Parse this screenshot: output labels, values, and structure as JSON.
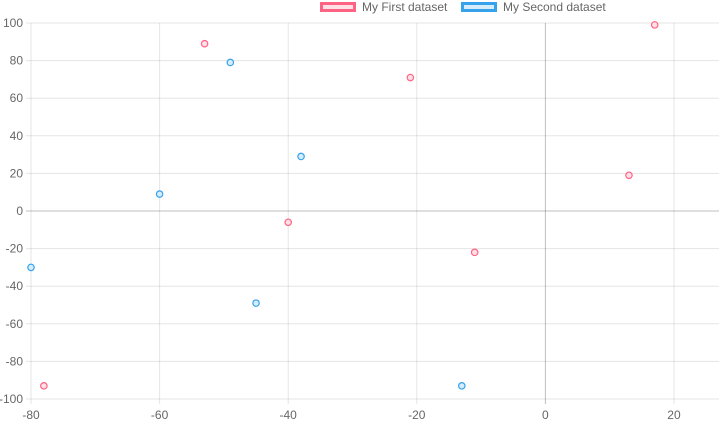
{
  "chart_data": {
    "type": "scatter",
    "title": "",
    "xlabel": "",
    "ylabel": "",
    "xlim": [
      -80,
      27
    ],
    "ylim": [
      -100,
      100
    ],
    "x_ticks": [
      -80,
      -60,
      -40,
      -20,
      0,
      20
    ],
    "y_ticks": [
      -100,
      -80,
      -60,
      -40,
      -20,
      0,
      20,
      40,
      60,
      80,
      100
    ],
    "x_tick_labels": [
      "-80",
      "-60",
      "-40",
      "-20",
      "0",
      "20"
    ],
    "y_tick_labels": [
      "-100",
      "-80",
      "-60",
      "-40",
      "-20",
      "0",
      "20",
      "40",
      "60",
      "80",
      "100"
    ],
    "grid": true,
    "legend_position": "top",
    "series": [
      {
        "name": "My First dataset",
        "border_color": "#ff6384",
        "fill_color": "#ffe0e6",
        "points": [
          {
            "x": -78,
            "y": -93
          },
          {
            "x": -53,
            "y": 89
          },
          {
            "x": -40,
            "y": -6
          },
          {
            "x": -21,
            "y": 71
          },
          {
            "x": -11,
            "y": -22
          },
          {
            "x": 13,
            "y": 19
          },
          {
            "x": 17,
            "y": 99
          }
        ]
      },
      {
        "name": "My Second dataset",
        "border_color": "#36a2eb",
        "fill_color": "#d7ecfb",
        "points": [
          {
            "x": -80,
            "y": -30
          },
          {
            "x": -60,
            "y": 9
          },
          {
            "x": -49,
            "y": 79
          },
          {
            "x": -45,
            "y": -49
          },
          {
            "x": -38,
            "y": 29
          },
          {
            "x": -13,
            "y": -93
          }
        ]
      }
    ]
  }
}
